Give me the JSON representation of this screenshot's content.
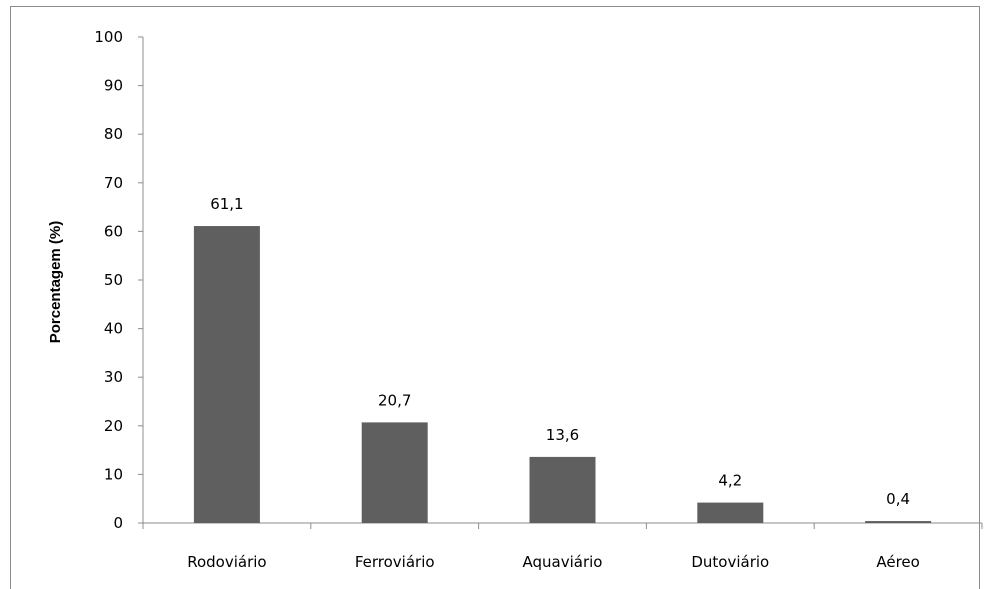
{
  "chart_data": {
    "type": "bar",
    "title": "",
    "xlabel": "",
    "ylabel": "Porcentagem (%)",
    "categories": [
      "Rodoviário",
      "Ferroviário",
      "Aquaviário",
      "Dutoviário",
      "Aéreo"
    ],
    "values": [
      61.1,
      20.7,
      13.6,
      4.2,
      0.4
    ],
    "value_labels": [
      "61,1",
      "20,7",
      "13,6",
      "4,2",
      "0,4"
    ],
    "ylim": [
      0,
      100
    ],
    "yticks": [
      "0",
      "10",
      "20",
      "30",
      "40",
      "50",
      "60",
      "70",
      "80",
      "90",
      "100"
    ],
    "bar_color": "#5f5f5f",
    "grid": false,
    "legend": false
  }
}
